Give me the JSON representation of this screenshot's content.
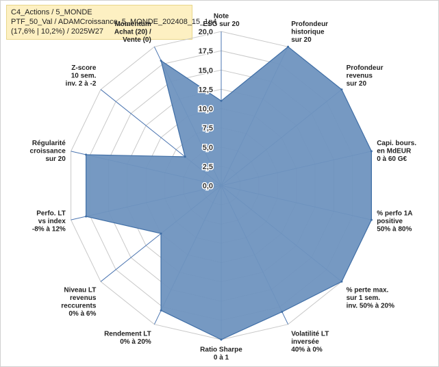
{
  "info_box": {
    "line1": "C4_Actions / 5_MONDE",
    "line2": "PTF_50_Val / ADAMCroissance_5_MONDE_202408_15_1p4",
    "line3": "(17,6% | 10,2%) / 2025W27"
  },
  "colors": {
    "fill": "#6f93bf",
    "stroke": "#3f6ea6",
    "grid": "#c8c8c8",
    "spoke": "#4a74b0",
    "momentum_title": "#b8964a"
  },
  "chart_data": {
    "type": "radar",
    "rmax": 20,
    "ticks": [
      "0,0",
      "2,5",
      "5,0",
      "7,5",
      "10,0",
      "12,5",
      "15,0",
      "17,5",
      "20,0"
    ],
    "tick_values": [
      0,
      2.5,
      5,
      7.5,
      10,
      12.5,
      15,
      17.5,
      20
    ],
    "axes": [
      {
        "label": [
          "Note",
          "ESG sur 20"
        ]
      },
      {
        "label": [
          "Profondeur",
          "historique",
          "sur 20"
        ]
      },
      {
        "label": [
          "Profondeur",
          "revenus",
          "sur 20"
        ]
      },
      {
        "label": [
          "Capi. bours.",
          "en MdEUR",
          "0 à 60 G€"
        ]
      },
      {
        "label": [
          "% perfo 1A",
          "positive",
          "50% à 80%"
        ]
      },
      {
        "label": [
          "% perte max.",
          "sur 1 sem.",
          "inv. 50% à 20%"
        ]
      },
      {
        "label": [
          "Volatilité LT",
          "inversée",
          "40% à 0%"
        ]
      },
      {
        "label": [
          "Ratio Sharpe",
          "0 à 1"
        ]
      },
      {
        "label": [
          "Rendement LT",
          "0% à 20%"
        ]
      },
      {
        "label": [
          "Niveau LT",
          "revenus",
          "reccurents",
          "0% à 6%"
        ]
      },
      {
        "label": [
          "Perfo. LT",
          "vs index",
          "-8% à 12%"
        ]
      },
      {
        "label": [
          "Régularité",
          "croissance",
          "sur 20"
        ]
      },
      {
        "label": [
          "Z-score",
          "10 sem.",
          "inv. 2 à -2"
        ]
      },
      {
        "label": [
          "Achat (20) /",
          "Vente (0)"
        ],
        "title": "Momentum"
      }
    ],
    "values": [
      11,
      20,
      20,
      20,
      20,
      20,
      18.2,
      20,
      18,
      10,
      18,
      18,
      6,
      18
    ]
  }
}
